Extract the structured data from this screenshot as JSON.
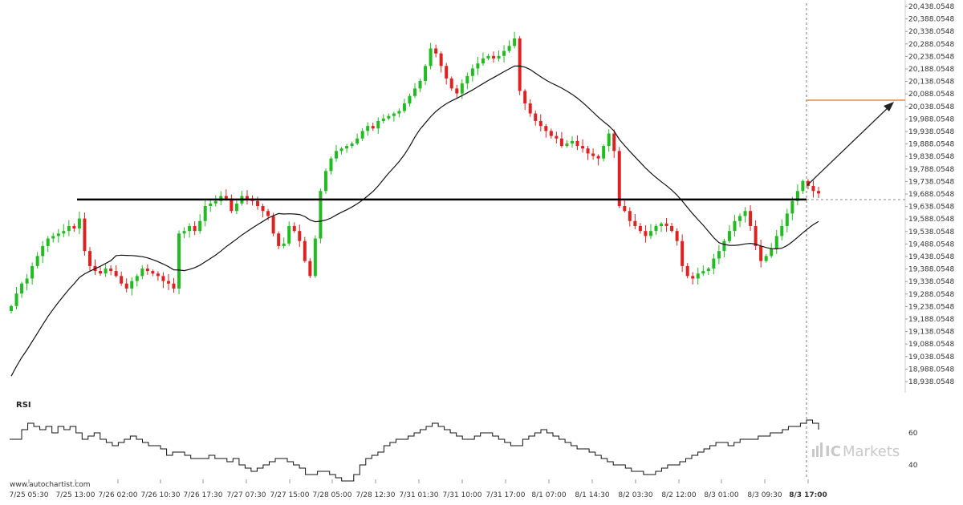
{
  "chart_data": {
    "type": "candlestick",
    "y_ticks": [
      "20,438.0548",
      "20,388.0548",
      "20,338.0548",
      "20,288.0548",
      "20,238.0548",
      "20,188.0548",
      "20,138.0548",
      "20,088.0548",
      "20,038.0548",
      "19,988.0548",
      "19,938.0548",
      "19,888.0548",
      "19,838.0548",
      "19,788.0548",
      "19,738.0548",
      "19,688.0548",
      "19,638.0548",
      "19,588.0548",
      "19,538.0548",
      "19,488.0548",
      "19,438.0548",
      "19,388.0548",
      "19,338.0548",
      "19,288.0548",
      "19,238.0548",
      "19,188.0548",
      "19,138.0548",
      "19,088.0548",
      "19,038.0548",
      "18,988.0548",
      "18,938.0548"
    ],
    "y_range": [
      18938.0548,
      20438.0548
    ],
    "x_ticks": [
      "7/25 05:30",
      "7/25 13:00",
      "7/26 02:00",
      "7/26 10:30",
      "7/26 17:30",
      "7/27 07:30",
      "7/27 15:00",
      "7/28 05:00",
      "7/28 12:30",
      "7/31 01:30",
      "7/31 10:00",
      "7/31 17:00",
      "8/1 07:00",
      "8/1 14:30",
      "8/2 03:30",
      "8/2 12:00",
      "8/3 01:00",
      "8/3 09:30",
      "8/3 17:00"
    ],
    "x_tick_bold_index": 18,
    "closes": [
      19240,
      19290,
      19330,
      19350,
      19400,
      19440,
      19480,
      19510,
      19520,
      19530,
      19540,
      19560,
      19550,
      19590,
      19460,
      19400,
      19380,
      19370,
      19390,
      19380,
      19360,
      19330,
      19310,
      19340,
      19360,
      19390,
      19380,
      19370,
      19360,
      19340,
      19330,
      19310,
      19530,
      19540,
      19560,
      19540,
      19580,
      19640,
      19650,
      19660,
      19680,
      19670,
      19620,
      19650,
      19680,
      19670,
      19660,
      19640,
      19620,
      19600,
      19530,
      19480,
      19490,
      19560,
      19540,
      19500,
      19420,
      19360,
      19510,
      19700,
      19780,
      19830,
      19860,
      19870,
      19880,
      19890,
      19910,
      19940,
      19960,
      19950,
      19980,
      19990,
      20000,
      20010,
      20020,
      20050,
      20080,
      20110,
      20140,
      20200,
      20270,
      20250,
      20200,
      20150,
      20110,
      20090,
      20130,
      20160,
      20190,
      20210,
      20230,
      20240,
      20230,
      20240,
      20260,
      20280,
      20310,
      20100,
      20050,
      20010,
      19980,
      19960,
      19940,
      19920,
      19910,
      19880,
      19890,
      19900,
      19880,
      19870,
      19850,
      19840,
      19830,
      19880,
      19930,
      19860,
      19640,
      19620,
      19580,
      19560,
      19540,
      19520,
      19540,
      19560,
      19570,
      19560,
      19540,
      19500,
      19400,
      19360,
      19350,
      19370,
      19380,
      19390,
      19430,
      19460,
      19500,
      19540,
      19580,
      19600,
      19620,
      19560,
      19480,
      19420,
      19440,
      19470,
      19520,
      19560,
      19610,
      19660,
      19700,
      19740,
      19720,
      19700,
      19690
    ],
    "resistance_level": 19666,
    "target_level": 20063,
    "rsi_label": "RSI",
    "rsi_levels": [
      60,
      40
    ],
    "rsi": [
      56,
      56,
      62,
      66,
      64,
      62,
      64,
      60,
      64,
      62,
      64,
      60,
      56,
      58,
      60,
      56,
      54,
      52,
      54,
      56,
      58,
      56,
      54,
      52,
      52,
      50,
      46,
      48,
      48,
      46,
      44,
      44,
      44,
      46,
      44,
      44,
      42,
      44,
      40,
      38,
      36,
      38,
      40,
      42,
      44,
      44,
      42,
      40,
      38,
      34,
      34,
      36,
      36,
      34,
      32,
      30,
      30,
      34,
      40,
      44,
      46,
      48,
      52,
      54,
      56,
      56,
      58,
      60,
      62,
      64,
      66,
      64,
      62,
      60,
      58,
      56,
      56,
      58,
      60,
      60,
      58,
      56,
      54,
      52,
      52,
      56,
      58,
      60,
      62,
      60,
      58,
      56,
      54,
      52,
      50,
      50,
      48,
      46,
      44,
      42,
      40,
      40,
      38,
      36,
      36,
      34,
      34,
      36,
      38,
      40,
      40,
      42,
      44,
      46,
      48,
      50,
      52,
      54,
      54,
      52,
      54,
      56,
      56,
      56,
      58,
      58,
      60,
      60,
      62,
      64,
      64,
      66,
      68,
      66,
      62
    ]
  },
  "watermark_left": "www.autochartist.com",
  "brand_ic": "IC",
  "brand_markets": "Markets",
  "colors": {
    "up": "#22bb22",
    "down": "#dd2222",
    "ma": "#111111",
    "resistance": "#000000",
    "target": "#e07020",
    "axis": "#999999"
  }
}
